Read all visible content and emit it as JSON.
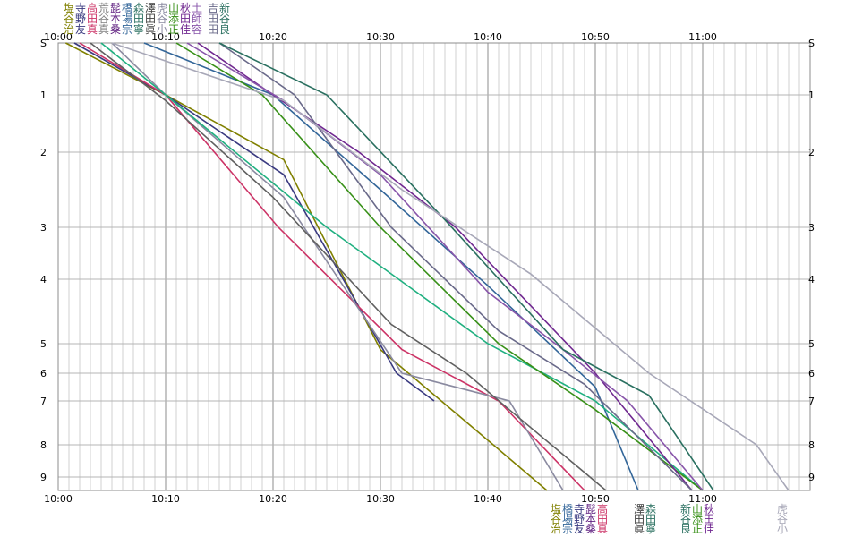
{
  "chart_data": {
    "type": "line",
    "title": "",
    "xlabel": "",
    "ylabel": "",
    "x_axis": {
      "ticks": [
        "10:00",
        "10:10",
        "10:20",
        "10:30",
        "10:40",
        "10:50",
        "11:00"
      ],
      "range_minutes_after_10": [
        0,
        70
      ],
      "grid": "every 1 minute, bold every 10 minutes"
    },
    "y_axis": {
      "ticks": [
        "S",
        "1",
        "2",
        "3",
        "4",
        "5",
        "6",
        "7",
        "8",
        "9"
      ],
      "range": [
        0,
        9.3
      ],
      "inverted": true
    },
    "series": [
      {
        "color": "#808000",
        "points": [
          [
            0.7,
            0
          ],
          [
            10,
            1
          ],
          [
            21,
            2.1
          ],
          [
            30,
            5.2
          ],
          [
            40.5,
            8
          ],
          [
            45.5,
            9.3
          ]
        ]
      },
      {
        "color": "#3a3a80",
        "points": [
          [
            1.5,
            0
          ],
          [
            10,
            1
          ],
          [
            21,
            2.3
          ],
          [
            31.5,
            6
          ],
          [
            35,
            7
          ]
        ]
      },
      {
        "color": "#cc3366",
        "points": [
          [
            2,
            0
          ],
          [
            10,
            1
          ],
          [
            20.5,
            3
          ],
          [
            32,
            5.2
          ],
          [
            41,
            7
          ],
          [
            49,
            9.3
          ]
        ]
      },
      {
        "color": "#8a8aa0",
        "points": [
          [
            5,
            0
          ],
          [
            10,
            1
          ],
          [
            21,
            2.6
          ],
          [
            32,
            6
          ],
          [
            42,
            7
          ],
          [
            47,
            9.3
          ]
        ]
      },
      {
        "color": "#606060",
        "points": [
          [
            3,
            0
          ],
          [
            10,
            1.1
          ],
          [
            20,
            2.6
          ],
          [
            31,
            4.7
          ],
          [
            38,
            6
          ],
          [
            42,
            7.2
          ],
          [
            51,
            9.3
          ]
        ]
      },
      {
        "color": "#336699",
        "points": [
          [
            8,
            0
          ],
          [
            20,
            1
          ],
          [
            30,
            2.5
          ],
          [
            40,
            4.1
          ],
          [
            50,
            6.5
          ],
          [
            54,
            9.3
          ]
        ]
      },
      {
        "color": "#20b080",
        "points": [
          [
            4,
            0
          ],
          [
            10,
            1
          ],
          [
            25,
            3
          ],
          [
            40,
            5
          ],
          [
            50,
            7
          ],
          [
            60,
            9.3
          ]
        ]
      },
      {
        "color": "#389018",
        "points": [
          [
            11,
            0
          ],
          [
            19,
            1
          ],
          [
            30,
            3
          ],
          [
            41,
            5
          ],
          [
            50,
            7.2
          ],
          [
            60,
            9.3
          ]
        ]
      },
      {
        "color": "#702890",
        "points": [
          [
            13,
            0
          ],
          [
            20,
            1
          ],
          [
            28,
            2
          ],
          [
            37,
            3
          ],
          [
            50,
            6
          ],
          [
            59,
            9.3
          ]
        ]
      },
      {
        "color": "#8855aa",
        "points": [
          [
            12,
            0
          ],
          [
            21,
            1.1
          ],
          [
            30,
            2.3
          ],
          [
            40,
            4.2
          ],
          [
            47,
            5.2
          ],
          [
            53,
            7
          ],
          [
            60,
            9.3
          ]
        ]
      },
      {
        "color": "#6a6a8a",
        "points": [
          [
            15,
            0
          ],
          [
            22,
            1
          ],
          [
            31,
            3
          ],
          [
            41,
            4.8
          ],
          [
            49,
            6.4
          ],
          [
            59,
            9.3
          ]
        ]
      },
      {
        "color": "#2a7060",
        "points": [
          [
            15,
            0
          ],
          [
            25,
            1
          ],
          [
            36,
            2.9
          ],
          [
            47,
            5.2
          ],
          [
            55,
            6.8
          ],
          [
            61,
            9.3
          ]
        ]
      },
      {
        "color": "#a8a8b8",
        "points": [
          [
            5,
            0
          ],
          [
            21,
            1.1
          ],
          [
            32,
            2.5
          ],
          [
            44,
            3.9
          ],
          [
            55,
            6
          ],
          [
            65,
            8
          ],
          [
            68,
            9.3
          ]
        ]
      }
    ],
    "legend_top": {
      "cols": [
        {
          "lines": [
            "塩",
            "谷",
            "治"
          ],
          "color": "#808000"
        },
        {
          "lines": [
            "寺",
            "野",
            "友"
          ],
          "color": "#3a3a80"
        },
        {
          "lines": [
            "高",
            "田",
            "真"
          ],
          "color": "#cc3366"
        },
        {
          "lines": [
            "荒",
            "谷",
            "真"
          ],
          "color": "#808080"
        },
        {
          "lines": [
            "髭",
            "本",
            "桑"
          ],
          "color": "#602080"
        },
        {
          "lines": [
            "橋",
            "場",
            "宗"
          ],
          "color": "#336699"
        },
        {
          "lines": [
            "森",
            "田",
            "寧"
          ],
          "color": "#2a7060"
        },
        {
          "lines": [
            "澤",
            "田",
            "眞"
          ],
          "color": "#404040"
        },
        {
          "lines": [
            "虎",
            "谷",
            "小"
          ],
          "color": "#8a8aa0"
        },
        {
          "lines": [
            "山",
            "添",
            "正"
          ],
          "color": "#389018"
        },
        {
          "lines": [
            "秋",
            "田",
            "佳"
          ],
          "color": "#702890"
        },
        {
          "lines": [
            "土",
            "師",
            "容"
          ],
          "color": "#8855aa"
        },
        {
          "lines": [
            "吉",
            "田",
            "田"
          ],
          "color": "#6a6a8a"
        },
        {
          "lines": [
            "新",
            "谷",
            "良"
          ],
          "color": "#2a7060"
        }
      ]
    },
    "legend_bottom": [
      {
        "lines": [
          "塩",
          "谷",
          "治"
        ],
        "color": "#808000"
      },
      {
        "lines": [
          "橋",
          "場",
          "宗"
        ],
        "color": "#336699"
      },
      {
        "lines": [
          "寺",
          "野",
          "友"
        ],
        "color": "#3a3a80"
      },
      {
        "lines": [
          "髭",
          "本",
          "桑"
        ],
        "color": "#602080"
      },
      {
        "lines": [
          "高",
          "田",
          "真"
        ],
        "color": "#cc3366"
      },
      {
        "lines": [
          "澤",
          "田",
          "眞"
        ],
        "color": "#404040"
      },
      {
        "lines": [
          "森",
          "田",
          "寧"
        ],
        "color": "#2a7060"
      },
      {
        "lines": [
          "新",
          "谷",
          "良"
        ],
        "color": "#2a7060"
      },
      {
        "lines": [
          "山",
          "添",
          "正"
        ],
        "color": "#389018"
      },
      {
        "lines": [
          "秋",
          "田",
          "佳"
        ],
        "color": "#702890"
      },
      {
        "lines": [
          "虎",
          "谷",
          "小"
        ],
        "color": "#a8a8b8"
      }
    ]
  }
}
